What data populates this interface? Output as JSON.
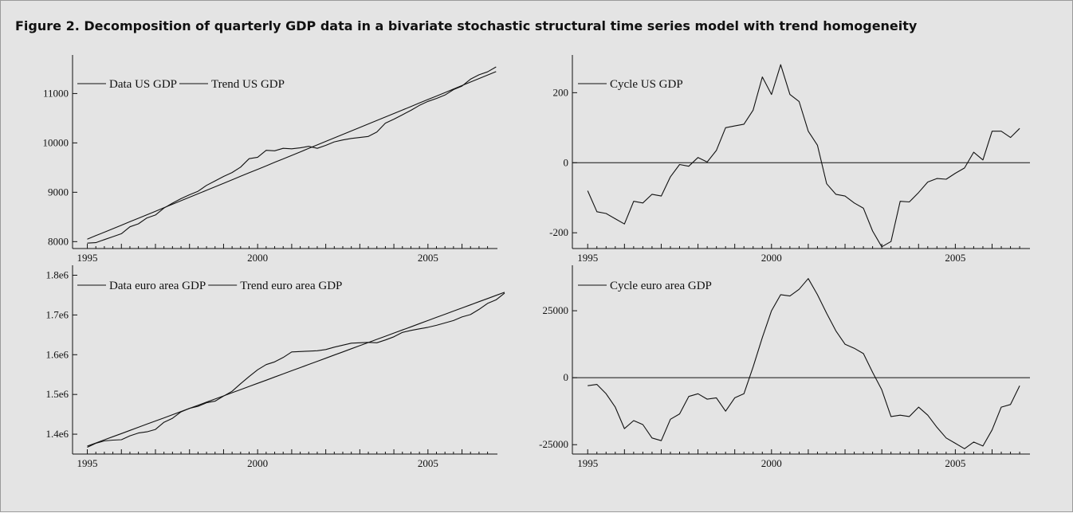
{
  "figure": {
    "title": "Figure 2.  Decomposition of quarterly GDP data in a bivariate stochastic structural time series model with trend homogeneity"
  },
  "chart_data": [
    {
      "id": "us-data-trend",
      "type": "line",
      "title": "",
      "xlabel": "",
      "ylabel": "",
      "xlim": [
        1994.8,
        2006.9
      ],
      "ylim": [
        7860,
        11620
      ],
      "x_ticks": [
        1995,
        2000,
        2005
      ],
      "x_tick_labels": [
        "1995",
        "2000",
        "2005"
      ],
      "y_ticks": [
        8000,
        9000,
        10000,
        11000
      ],
      "y_tick_labels": [
        "8000",
        "9000",
        "10000",
        "11000"
      ],
      "legend": "top-left",
      "x_start": 1995.0,
      "x_step": 0.25,
      "series": [
        {
          "name": "Data US GDP",
          "values": [
            7970,
            7980,
            8040,
            8100,
            8160,
            8300,
            8360,
            8480,
            8540,
            8680,
            8780,
            8870,
            8950,
            9020,
            9140,
            9230,
            9320,
            9400,
            9510,
            9680,
            9710,
            9850,
            9840,
            9890,
            9880,
            9900,
            9930,
            9890,
            9950,
            10020,
            10060,
            10090,
            10110,
            10130,
            10220,
            10400,
            10480,
            10570,
            10660,
            10760,
            10840,
            10900,
            10970,
            11080,
            11150,
            11290,
            11380,
            11440,
            11540
          ]
        },
        {
          "name": "Trend US GDP",
          "values": [
            8050,
            8121,
            8191,
            8262,
            8333,
            8404,
            8474,
            8545,
            8616,
            8686,
            8757,
            8828,
            8899,
            8969,
            9040,
            9111,
            9181,
            9252,
            9323,
            9394,
            9464,
            9535,
            9606,
            9676,
            9747,
            9818,
            9889,
            9959,
            10030,
            10101,
            10171,
            10242,
            10313,
            10384,
            10454,
            10525,
            10596,
            10666,
            10737,
            10808,
            10879,
            10949,
            11020,
            11091,
            11161,
            11232,
            11303,
            11374,
            11444
          ]
        }
      ]
    },
    {
      "id": "us-cycle",
      "type": "line",
      "title": "",
      "xlabel": "",
      "ylabel": "",
      "xlim": [
        1994.8,
        2006.9
      ],
      "ylim": [
        -245,
        285
      ],
      "x_ticks": [
        1995,
        2000,
        2005
      ],
      "x_tick_labels": [
        "1995",
        "2000",
        "2005"
      ],
      "y_ticks": [
        -200,
        0,
        200
      ],
      "y_tick_labels": [
        "-200",
        "0",
        "200"
      ],
      "zero_line": true,
      "legend": "top-left",
      "x_start": 1995.0,
      "x_step": 0.25,
      "series": [
        {
          "name": "Cycle US GDP",
          "values": [
            -80,
            -140,
            -145,
            -160,
            -175,
            -110,
            -115,
            -90,
            -95,
            -40,
            -5,
            -10,
            15,
            2,
            35,
            100,
            105,
            110,
            150,
            245,
            195,
            280,
            195,
            175,
            90,
            50,
            -60,
            -90,
            -95,
            -115,
            -130,
            -195,
            -240,
            -225,
            -110,
            -112,
            -85,
            -55,
            -45,
            -47,
            -30,
            -15,
            30,
            8,
            90,
            90,
            72,
            98
          ]
        }
      ]
    },
    {
      "id": "ea-data-trend",
      "type": "line",
      "title": "",
      "xlabel": "",
      "ylabel": "",
      "xlim": [
        1994.8,
        2006.9
      ],
      "ylim": [
        1350000,
        1805000
      ],
      "x_ticks": [
        1995,
        2000,
        2005
      ],
      "x_tick_labels": [
        "1995",
        "2000",
        "2005"
      ],
      "y_ticks": [
        1400000,
        1500000,
        1600000,
        1700000,
        1800000
      ],
      "y_tick_labels": [
        "1.4e6",
        "1.5e6",
        "1.6e6",
        "1.7e6",
        "1.8e6"
      ],
      "legend": "top-left",
      "x_start": 1995.0,
      "x_step": 0.25,
      "series": [
        {
          "name": "Data euro area GDP",
          "values": [
            1367000,
            1377000,
            1383000,
            1385000,
            1386000,
            1396000,
            1403000,
            1406000,
            1412000,
            1430000,
            1440000,
            1456000,
            1465000,
            1470000,
            1479000,
            1483000,
            1496000,
            1508000,
            1527000,
            1545000,
            1562000,
            1575000,
            1582000,
            1593000,
            1607000,
            1608000,
            1609000,
            1610000,
            1613000,
            1619000,
            1624000,
            1629000,
            1630000,
            1631000,
            1630000,
            1637000,
            1645000,
            1656000,
            1661000,
            1665000,
            1669000,
            1674000,
            1680000,
            1686000,
            1695000,
            1701000,
            1714000,
            1729000,
            1738000,
            1755000
          ]
        },
        {
          "name": "Trend euro area GDP",
          "values": [
            1370000,
            1377900,
            1385800,
            1393700,
            1401600,
            1409500,
            1417400,
            1425300,
            1433200,
            1441100,
            1449000,
            1456900,
            1464800,
            1472700,
            1480600,
            1488500,
            1496400,
            1504300,
            1512200,
            1520100,
            1528000,
            1535900,
            1543800,
            1551700,
            1559600,
            1567500,
            1575400,
            1583300,
            1591200,
            1599100,
            1607000,
            1614900,
            1622800,
            1630700,
            1638600,
            1646500,
            1654400,
            1662300,
            1670200,
            1678100,
            1686000,
            1693900,
            1701800,
            1709700,
            1717600,
            1725500,
            1733400,
            1741300,
            1749200,
            1757100
          ]
        }
      ]
    },
    {
      "id": "ea-cycle",
      "type": "line",
      "title": "",
      "xlabel": "",
      "ylabel": "",
      "xlim": [
        1994.8,
        2006.9
      ],
      "ylim": [
        -28500,
        39000
      ],
      "x_ticks": [
        1995,
        2000,
        2005
      ],
      "x_tick_labels": [
        "1995",
        "2000",
        "2005"
      ],
      "y_ticks": [
        -25000,
        0,
        25000
      ],
      "y_tick_labels": [
        "-25000",
        "0",
        "25000"
      ],
      "zero_line": true,
      "legend": "top-left",
      "x_start": 1995.0,
      "x_step": 0.25,
      "series": [
        {
          "name": "Cycle euro area GDP",
          "values": [
            -3000,
            -2500,
            -6000,
            -11000,
            -19000,
            -16000,
            -17500,
            -22500,
            -23500,
            -15500,
            -13500,
            -7000,
            -6000,
            -8000,
            -7500,
            -12500,
            -7500,
            -6000,
            4000,
            15000,
            25000,
            31000,
            30500,
            33000,
            37000,
            31000,
            24000,
            17500,
            12500,
            11000,
            9000,
            2000,
            -4500,
            -14500,
            -14000,
            -14500,
            -11000,
            -14000,
            -18500,
            -22500,
            -24500,
            -26500,
            -24000,
            -25500,
            -19500,
            -11000,
            -10000,
            -3000
          ]
        }
      ]
    }
  ]
}
